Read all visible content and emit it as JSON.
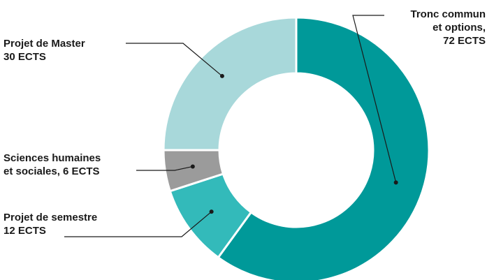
{
  "chart_data": {
    "type": "pie",
    "title": "",
    "total_label": "",
    "slices": [
      {
        "id": "tronc",
        "value": 72,
        "color": "#009999",
        "label_lines": [
          "Tronc commun",
          "et options,",
          "72 ECTS"
        ]
      },
      {
        "id": "semestre",
        "value": 12,
        "color": "#33BABA",
        "label_lines": [
          "Projet de semestre",
          "12 ECTS"
        ]
      },
      {
        "id": "shs",
        "value": 6,
        "color": "#9B9B9B",
        "label_lines": [
          "Sciences humaines",
          "et sociales, 6 ECTS"
        ]
      },
      {
        "id": "master",
        "value": 30,
        "color": "#A8D8DA",
        "label_lines": [
          "Projet de Master",
          "30 ECTS"
        ]
      }
    ],
    "legend": "none",
    "donut": true
  }
}
